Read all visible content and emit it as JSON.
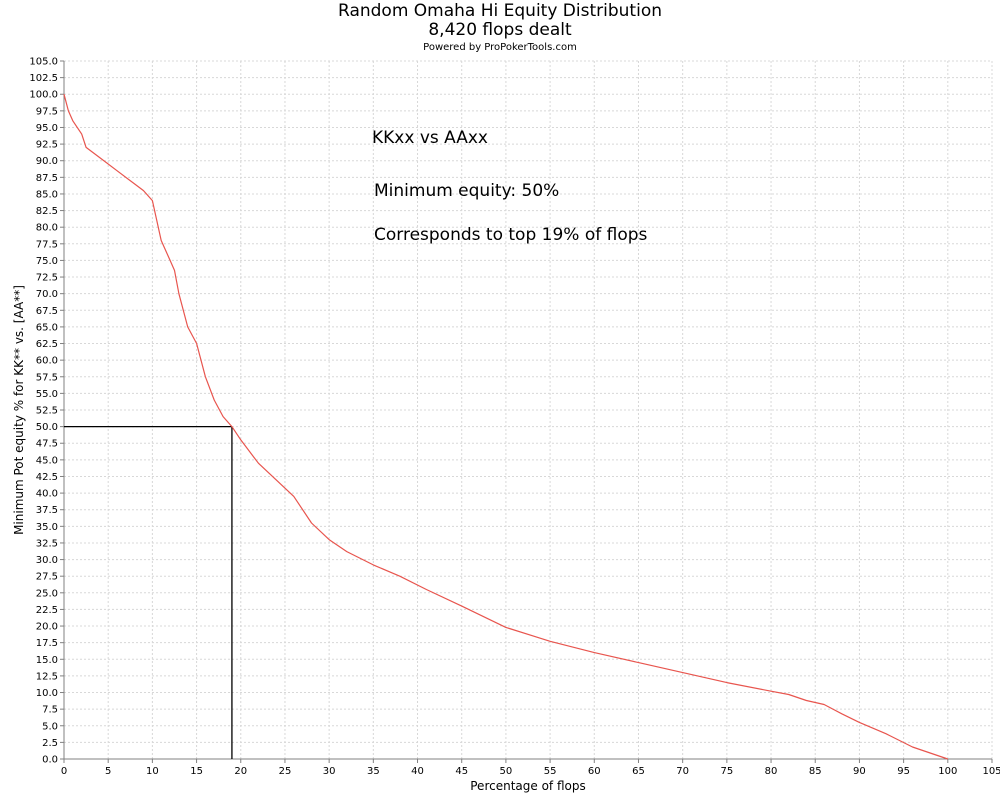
{
  "chart_data": {
    "type": "line",
    "title": "Random Omaha Hi Equity Distribution",
    "subtitle": "8,420 flops dealt",
    "credit": "Powered by ProPokerTools.com",
    "xlabel": "Percentage of flops",
    "ylabel": "Minimum Pot equity % for KK** vs. [AA**]",
    "xlim": [
      0,
      105
    ],
    "ylim": [
      0,
      105
    ],
    "x_tick_step": 5,
    "y_tick_step": 2.5,
    "grid": true,
    "series": [
      {
        "name": "KK** vs. [AA**]",
        "color": "#e8554e",
        "x": [
          0,
          0.5,
          1,
          2,
          2.5,
          4,
          6,
          8,
          9,
          10,
          11,
          12,
          12.5,
          13,
          14,
          15,
          16,
          17,
          18,
          19,
          20,
          22,
          24,
          26,
          28,
          30,
          32,
          35,
          38,
          41,
          45,
          50,
          55,
          60,
          65,
          70,
          75,
          80,
          82,
          84,
          86,
          87,
          88,
          90,
          93,
          96,
          100
        ],
        "y": [
          100,
          97.5,
          96,
          94,
          92,
          90.5,
          88.5,
          86.5,
          85.5,
          84,
          78,
          75,
          73.5,
          70,
          65,
          62.5,
          57.5,
          54,
          51.5,
          50,
          48,
          44.5,
          42,
          39.5,
          35.5,
          33,
          31.2,
          29.2,
          27.5,
          25.5,
          23,
          19.8,
          17.7,
          16,
          14.5,
          13,
          11.5,
          10.2,
          9.7,
          8.8,
          8.2,
          7.5,
          6.8,
          5.5,
          3.8,
          1.8,
          0
        ]
      }
    ],
    "reference_lines": {
      "x": 19,
      "y": 50,
      "color": "#000000"
    },
    "annotations": [
      "KKxx vs AAxx",
      "Minimum equity: 50%",
      "Corresponds to top 19% of flops"
    ]
  }
}
